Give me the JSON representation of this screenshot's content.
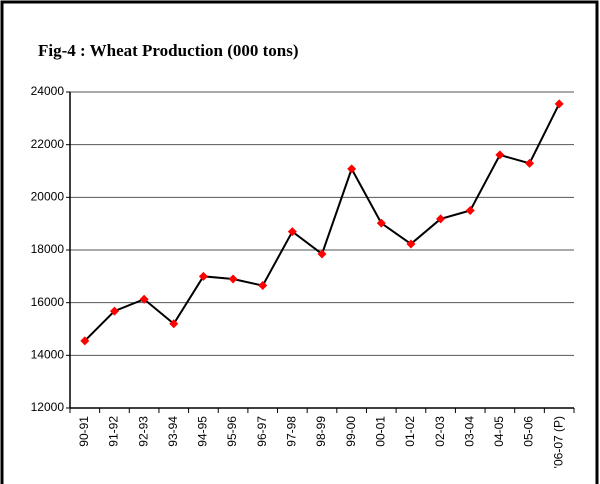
{
  "chart_data": {
    "type": "line",
    "title": "Fig-4 : Wheat Production (000 tons)",
    "categories": [
      "90-91",
      "91-92",
      "92-93",
      "93-94",
      "94-95",
      "95-96",
      "96-97",
      "97-98",
      "98-99",
      "99-00",
      "00-01",
      "01-02",
      "02-03",
      "03-04",
      "04-05",
      "05-06",
      "'06-07 (P)"
    ],
    "series": [
      {
        "name": "Wheat Production",
        "color": "#000000",
        "marker_color": "#ff0000",
        "values": [
          14550,
          15680,
          16130,
          15200,
          17000,
          16900,
          16650,
          18700,
          17850,
          21080,
          19020,
          18230,
          19180,
          19500,
          21610,
          21290,
          23550
        ]
      }
    ],
    "ylim": [
      12000,
      24000
    ],
    "yticks": [
      12000,
      14000,
      16000,
      18000,
      20000,
      22000,
      24000
    ],
    "grid": true
  }
}
